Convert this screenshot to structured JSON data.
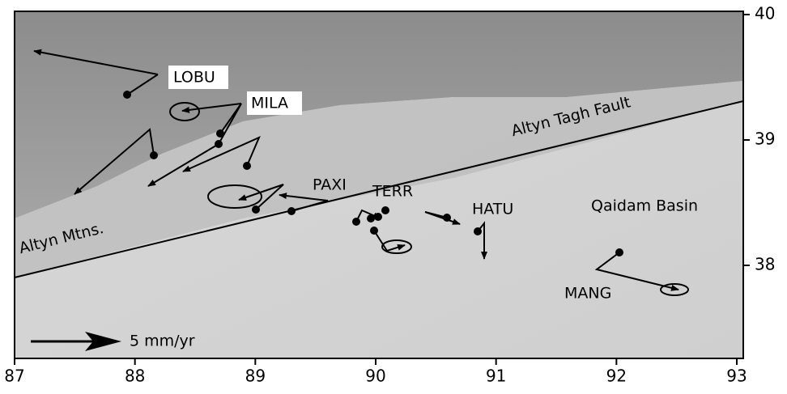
{
  "map": {
    "x_axis": {
      "ticks": [
        87,
        88,
        89,
        90,
        91,
        92,
        93
      ]
    },
    "y_axis": {
      "ticks": [
        38,
        39,
        40
      ]
    },
    "stations": [
      "LOBU",
      "MILA",
      "PAXI",
      "TERR",
      "HATU",
      "MANG"
    ],
    "features": {
      "fault": "Altyn Tagh Fault",
      "basin": "Qaidam Basin",
      "mountains": "Altyn Mtns."
    },
    "scale_label": "5 mm/yr"
  }
}
